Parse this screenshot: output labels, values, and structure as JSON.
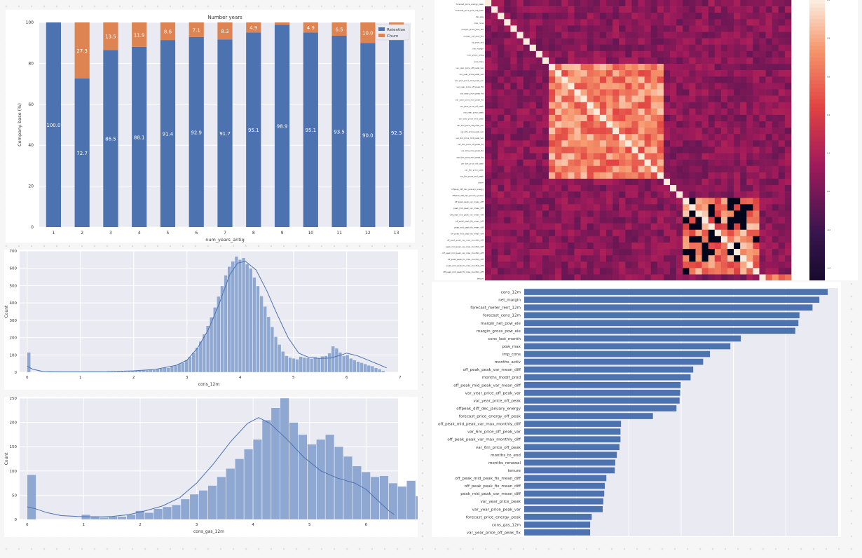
{
  "colors": {
    "plot_bg": "#eaeaf2",
    "retention": "#4c72b0",
    "churn": "#dd8452",
    "hist_fill": "#8fa8d2",
    "hist_line": "#4c72b0",
    "heat_low": "#03051a",
    "heat_mid": "#a11a5b",
    "heat_high": "#faebdd"
  },
  "chart_data": [
    {
      "type": "bar",
      "stacked": true,
      "title": "Number years",
      "xlabel": "num_years_antig",
      "ylabel": "Company base (%)",
      "ylim": [
        0,
        100
      ],
      "yticks": [
        0,
        20,
        40,
        60,
        80,
        100
      ],
      "categories": [
        "1",
        "2",
        "3",
        "4",
        "5",
        "6",
        "7",
        "8",
        "9",
        "10",
        "11",
        "12",
        "13"
      ],
      "series": [
        {
          "name": "Retention",
          "values": [
            100,
            72.7,
            86.5,
            88.1,
            91.4,
            92.9,
            91.7,
            95.1,
            98.9,
            95.1,
            93.5,
            90.0,
            92.3
          ],
          "labels": [
            "100.0",
            "72.7",
            "86.5",
            "88.1",
            "91.4",
            "92.9",
            "91.7",
            "95.1",
            "98.9",
            "95.1",
            "93.5",
            "90.0",
            "92.3"
          ]
        },
        {
          "name": "Churn",
          "values": [
            0,
            27.3,
            13.5,
            11.9,
            8.6,
            7.1,
            8.3,
            4.9,
            1.1,
            4.9,
            6.5,
            10.0,
            7.7
          ],
          "labels": [
            "",
            "27.3",
            "13.5",
            "11.9",
            "8.6",
            "7.1",
            "8.3",
            "4.9",
            "",
            "4.9",
            "6.5",
            "10.0",
            "7.7"
          ]
        }
      ],
      "legend_position": "top-right",
      "grid": true
    },
    {
      "type": "heatmap",
      "row_labels": [
        "forecast_price_energy_peak",
        "forecast_price_pow_off_peak",
        "has_gas",
        "imp_cons",
        "margin_gross_pow_ele",
        "margin_net_pow_ele",
        "nb_prod_act",
        "net_margin",
        "num_years_antig",
        "pow_max",
        "var_year_price_off_peak_var",
        "var_year_price_peak_var",
        "var_year_price_mid_peak_var",
        "var_year_price_off_peak_fix",
        "var_year_price_peak_fix",
        "var_year_price_mid_peak_fix",
        "var_year_price_off_peak",
        "var_year_price_peak",
        "var_year_price_mid_peak",
        "var_6m_price_off_peak_var",
        "var_6m_price_peak_var",
        "var_6m_price_mid_peak_var",
        "var_6m_price_off_peak_fix",
        "var_6m_price_peak_fix",
        "var_6m_price_mid_peak_fix",
        "var_6m_price_off_peak",
        "var_6m_price_peak",
        "var_6m_price_mid_peak",
        "churn",
        "offpeak_diff_dec_january_energy",
        "offpeak_diff_dec_january_power",
        "off_peak_peak_var_mean_diff",
        "peak_mid_peak_var_mean_diff",
        "off_peak_mid_peak_var_mean_diff",
        "off_peak_peak_fix_mean_diff",
        "peak_mid_peak_fix_mean_diff",
        "off_peak_mid_peak_fix_mean_diff",
        "off_peak_peak_var_max_monthly_diff",
        "peak_mid_peak_var_max_monthly_diff",
        "off_peak_mid_peak_var_max_monthly_diff",
        "off_peak_peak_fix_max_monthly_diff",
        "peak_mid_peak_fix_max_monthly_diff",
        "off_peak_mid_peak_fix_max_monthly_diff",
        "tenure",
        "months_activ",
        "months_to_end",
        "months_modif_prod",
        "months_renewal"
      ],
      "colorbar_ticks": [
        "1.0",
        "0.8",
        "0.6",
        "0.4",
        "0.2",
        "0.0",
        "-0.2",
        "-0.4",
        "-0.6"
      ]
    },
    {
      "type": "histogram",
      "xlabel": "cons_12m",
      "ylabel": "Count",
      "xlim": [
        0,
        7
      ],
      "ylim": [
        0,
        700
      ],
      "xticks": [
        0,
        1,
        2,
        3,
        4,
        5,
        6,
        7
      ],
      "yticks": [
        0,
        100,
        200,
        300,
        400,
        500,
        600,
        700
      ],
      "bin_start": 0,
      "bin_width": 0.0672,
      "counts": [
        115,
        0,
        0,
        3,
        2,
        1,
        3,
        2,
        1,
        0,
        1,
        2,
        1,
        1,
        2,
        1,
        1,
        2,
        3,
        2,
        3,
        2,
        3,
        4,
        3,
        5,
        6,
        4,
        6,
        8,
        10,
        9,
        12,
        11,
        14,
        13,
        18,
        21,
        26,
        25,
        34,
        38,
        48,
        55,
        70,
        90,
        112,
        142,
        178,
        220,
        268,
        318,
        375,
        438,
        498,
        560,
        610,
        640,
        668,
        650,
        660,
        625,
        600,
        548,
        498,
        440,
        380,
        320,
        262,
        205,
        160,
        120,
        95,
        85,
        80,
        75,
        90,
        85,
        82,
        78,
        88,
        80,
        92,
        95,
        110,
        150,
        138,
        115,
        95,
        100,
        80,
        70,
        62,
        55,
        48,
        40,
        36,
        25,
        18,
        8,
        0
      ],
      "kde": [
        [
          0,
          35
        ],
        [
          0.1,
          18
        ],
        [
          0.3,
          4
        ],
        [
          0.6,
          2
        ],
        [
          1.0,
          2
        ],
        [
          1.5,
          3
        ],
        [
          2.0,
          8
        ],
        [
          2.4,
          16
        ],
        [
          2.8,
          40
        ],
        [
          3.0,
          70
        ],
        [
          3.2,
          140
        ],
        [
          3.4,
          245
        ],
        [
          3.6,
          390
        ],
        [
          3.8,
          560
        ],
        [
          3.95,
          630
        ],
        [
          4.1,
          640
        ],
        [
          4.3,
          590
        ],
        [
          4.5,
          470
        ],
        [
          4.7,
          330
        ],
        [
          4.9,
          200
        ],
        [
          5.1,
          110
        ],
        [
          5.3,
          84
        ],
        [
          5.5,
          80
        ],
        [
          5.7,
          82
        ],
        [
          5.9,
          100
        ],
        [
          6.0,
          110
        ],
        [
          6.2,
          95
        ],
        [
          6.4,
          70
        ],
        [
          6.6,
          45
        ],
        [
          6.75,
          25
        ]
      ]
    },
    {
      "type": "histogram",
      "xlabel": "cons_gas_12m",
      "ylabel": "Count",
      "xlim": [
        0,
        6.6
      ],
      "ylim": [
        0,
        250
      ],
      "xticks": [
        0,
        1,
        2,
        3,
        4,
        5,
        6
      ],
      "yticks": [
        0,
        50,
        100,
        150,
        200,
        250
      ],
      "bin_start": 0,
      "bin_width": 0.16,
      "counts": [
        92,
        0,
        0,
        0,
        0,
        0,
        10,
        7,
        4,
        6,
        6,
        10,
        18,
        14,
        22,
        26,
        30,
        42,
        52,
        60,
        70,
        88,
        105,
        125,
        145,
        165,
        205,
        230,
        250,
        200,
        175,
        155,
        165,
        175,
        150,
        130,
        110,
        98,
        88,
        90,
        75,
        68,
        80,
        48,
        68,
        50,
        28,
        8
      ],
      "kde": [
        [
          0,
          26
        ],
        [
          0.15,
          22
        ],
        [
          0.35,
          14
        ],
        [
          0.6,
          8
        ],
        [
          0.9,
          6
        ],
        [
          1.2,
          5
        ],
        [
          1.5,
          6
        ],
        [
          1.8,
          10
        ],
        [
          2.1,
          18
        ],
        [
          2.4,
          28
        ],
        [
          2.7,
          45
        ],
        [
          3.0,
          75
        ],
        [
          3.3,
          115
        ],
        [
          3.6,
          160
        ],
        [
          3.9,
          198
        ],
        [
          4.1,
          210
        ],
        [
          4.3,
          198
        ],
        [
          4.6,
          165
        ],
        [
          4.9,
          128
        ],
        [
          5.2,
          100
        ],
        [
          5.5,
          85
        ],
        [
          5.8,
          75
        ],
        [
          6.0,
          62
        ],
        [
          6.2,
          40
        ],
        [
          6.4,
          18
        ],
        [
          6.5,
          10
        ]
      ]
    },
    {
      "type": "bar",
      "orientation": "horizontal",
      "categories": [
        "cons_12m",
        "net_margin",
        "forecast_meter_rent_12m",
        "forecast_cons_12m",
        "margin_net_pow_ele",
        "margin_gross_pow_ele",
        "cons_last_month",
        "pow_max",
        "imp_cons",
        "months_activ",
        "off_peak_peak_var_mean_diff",
        "months_modif_prod",
        "off_peak_mid_peak_var_mean_diff",
        "var_year_price_off_peak_var",
        "var_year_price_off_peak",
        "offpeak_diff_dec_january_energy",
        "forecast_price_energy_off_peak",
        "off_peak_mid_peak_var_max_monthly_diff",
        "var_6m_price_off_peak_var",
        "off_peak_peak_var_max_monthly_diff",
        "var_6m_price_off_peak",
        "months_to_end",
        "months_renewal",
        "tenure",
        "off_peak_mid_peak_fix_mean_diff",
        "off_peak_peak_fix_mean_diff",
        "peak_mid_peak_var_mean_diff",
        "var_year_price_peak",
        "var_year_price_peak_var",
        "forecast_price_energy_peak",
        "cons_gas_12m",
        "var_year_price_off_peak_fix"
      ],
      "values": [
        0.058,
        0.0564,
        0.0551,
        0.0526,
        0.0524,
        0.0518,
        0.0414,
        0.0394,
        0.0355,
        0.0342,
        0.0323,
        0.0318,
        0.0299,
        0.0298,
        0.0297,
        0.0291,
        0.0246,
        0.0185,
        0.0184,
        0.0184,
        0.0182,
        0.0177,
        0.0174,
        0.0173,
        0.0157,
        0.0154,
        0.0153,
        0.0151,
        0.015,
        0.0129,
        0.0126,
        0.0126
      ]
    }
  ]
}
